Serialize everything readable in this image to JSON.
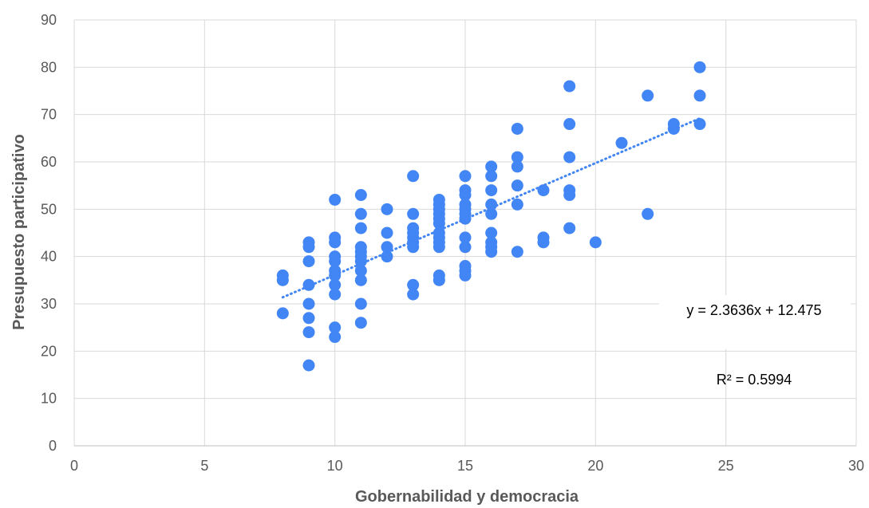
{
  "chart_data": {
    "type": "scatter",
    "title": "",
    "xlabel": "Gobernabilidad y democracia",
    "ylabel": "Presupuesto participativo",
    "xlim": [
      0,
      30
    ],
    "ylim": [
      0,
      90
    ],
    "x_ticks": [
      "0",
      "5",
      "10",
      "15",
      "20",
      "25",
      "30"
    ],
    "y_ticks": [
      "0",
      "10",
      "20",
      "30",
      "40",
      "50",
      "60",
      "70",
      "80",
      "90"
    ],
    "grid": true,
    "legend": "none",
    "point_color": "#4285f4",
    "trendline_color": "#4285f4",
    "series": [
      {
        "points": [
          [
            8,
            36
          ],
          [
            8,
            35
          ],
          [
            8,
            28
          ],
          [
            9,
            43
          ],
          [
            9,
            42
          ],
          [
            9,
            39
          ],
          [
            9,
            34
          ],
          [
            9,
            30
          ],
          [
            9,
            27
          ],
          [
            9,
            24
          ],
          [
            9,
            17
          ],
          [
            10,
            52
          ],
          [
            10,
            44
          ],
          [
            10,
            43
          ],
          [
            10,
            40
          ],
          [
            10,
            39
          ],
          [
            10,
            37
          ],
          [
            10,
            36
          ],
          [
            10,
            34
          ],
          [
            10,
            32
          ],
          [
            10,
            25
          ],
          [
            10,
            23
          ],
          [
            11,
            53
          ],
          [
            11,
            49
          ],
          [
            11,
            46
          ],
          [
            11,
            42
          ],
          [
            11,
            41
          ],
          [
            11,
            40
          ],
          [
            11,
            39
          ],
          [
            11,
            37
          ],
          [
            11,
            35
          ],
          [
            11,
            30
          ],
          [
            11,
            26
          ],
          [
            12,
            50
          ],
          [
            12,
            45
          ],
          [
            12,
            42
          ],
          [
            12,
            40
          ],
          [
            13,
            57
          ],
          [
            13,
            49
          ],
          [
            13,
            46
          ],
          [
            13,
            45
          ],
          [
            13,
            44
          ],
          [
            13,
            43
          ],
          [
            13,
            42
          ],
          [
            13,
            34
          ],
          [
            13,
            32
          ],
          [
            14,
            52
          ],
          [
            14,
            51
          ],
          [
            14,
            50
          ],
          [
            14,
            49
          ],
          [
            14,
            48
          ],
          [
            14,
            47
          ],
          [
            14,
            45
          ],
          [
            14,
            44
          ],
          [
            14,
            43
          ],
          [
            14,
            42
          ],
          [
            14,
            36
          ],
          [
            14,
            35
          ],
          [
            15,
            57
          ],
          [
            15,
            54
          ],
          [
            15,
            53
          ],
          [
            15,
            51
          ],
          [
            15,
            50
          ],
          [
            15,
            49
          ],
          [
            15,
            48
          ],
          [
            15,
            44
          ],
          [
            15,
            42
          ],
          [
            15,
            38
          ],
          [
            15,
            37
          ],
          [
            15,
            36
          ],
          [
            16,
            59
          ],
          [
            16,
            57
          ],
          [
            16,
            54
          ],
          [
            16,
            51
          ],
          [
            16,
            49
          ],
          [
            16,
            45
          ],
          [
            16,
            43
          ],
          [
            16,
            42
          ],
          [
            16,
            41
          ],
          [
            17,
            67
          ],
          [
            17,
            61
          ],
          [
            17,
            59
          ],
          [
            17,
            55
          ],
          [
            17,
            51
          ],
          [
            17,
            41
          ],
          [
            18,
            54
          ],
          [
            18,
            44
          ],
          [
            18,
            43
          ],
          [
            19,
            76
          ],
          [
            19,
            68
          ],
          [
            19,
            61
          ],
          [
            19,
            54
          ],
          [
            19,
            53
          ],
          [
            19,
            46
          ],
          [
            20,
            43
          ],
          [
            21,
            64
          ],
          [
            22,
            74
          ],
          [
            22,
            49
          ],
          [
            23,
            68
          ],
          [
            23,
            67
          ],
          [
            24,
            80
          ],
          [
            24,
            74
          ],
          [
            24,
            68
          ]
        ]
      }
    ],
    "trendline": {
      "style": "dotted",
      "slope": 2.3636,
      "intercept": 12.475,
      "x_range": [
        8,
        24
      ],
      "equation_label": "y = 2.3636x + 12.475",
      "r2_label": "R² = 0.5994"
    }
  }
}
